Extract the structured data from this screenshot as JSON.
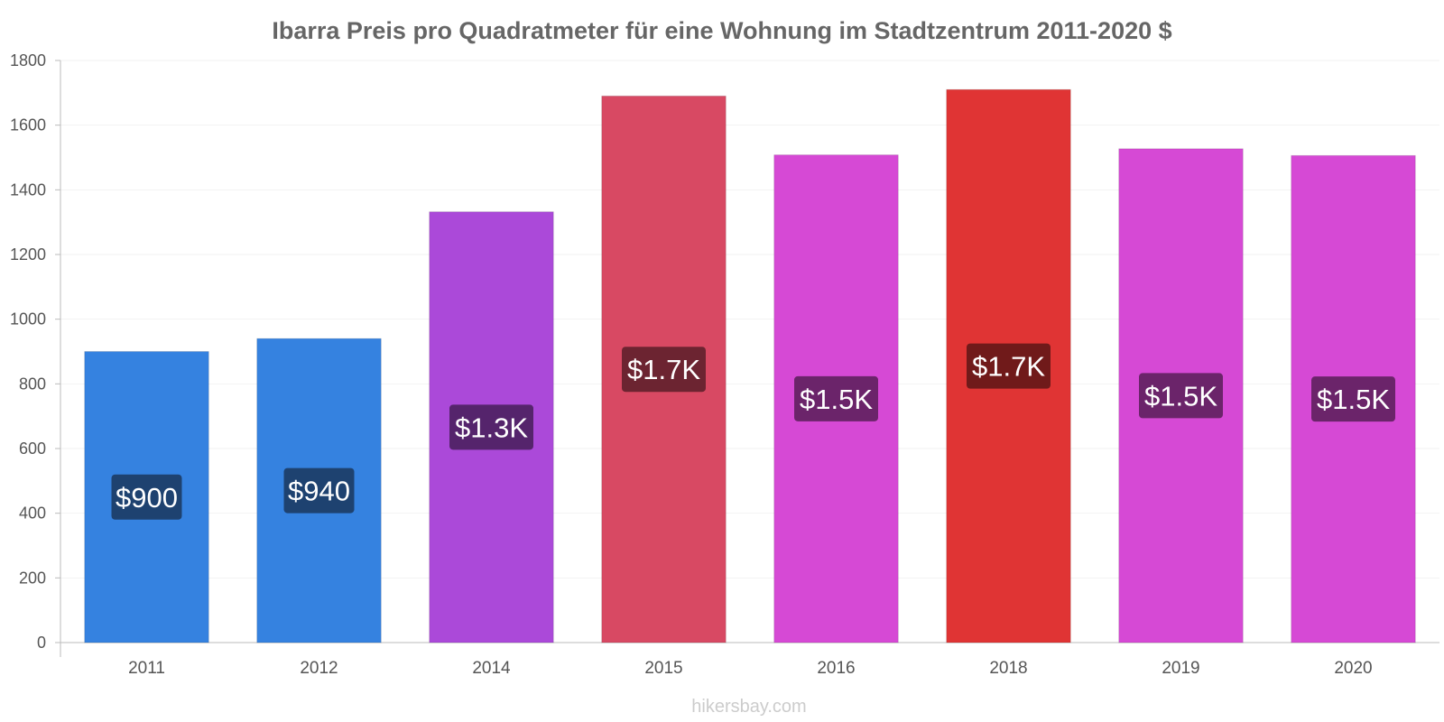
{
  "chart_data": {
    "type": "bar",
    "title": "Ibarra Preis pro Quadratmeter für eine Wohnung im Stadtzentrum 2011-2020 $",
    "xlabel": "",
    "ylabel": "",
    "ylim": [
      0,
      1800
    ],
    "yticks": [
      "0",
      "200",
      "400",
      "600",
      "800",
      "1000",
      "1200",
      "1400",
      "1600",
      "1800"
    ],
    "categories": [
      "2011",
      "2012",
      "2014",
      "2015",
      "2016",
      "2018",
      "2019",
      "2020"
    ],
    "values": [
      900,
      940,
      1332,
      1690,
      1508,
      1710,
      1527,
      1506
    ],
    "value_labels": [
      "$900",
      "$940",
      "$1.3K",
      "$1.7K",
      "$1.5K",
      "$1.7K",
      "$1.5K",
      "$1.5K"
    ],
    "bar_colors": [
      "#3582e0",
      "#3582e0",
      "#ab49d9",
      "#d84963",
      "#d649d5",
      "#e03434",
      "#d649d5",
      "#d649d5"
    ],
    "label_bg_colors": [
      "#1e4270",
      "#1e4270",
      "#55246c",
      "#6c2431",
      "#6b246a",
      "#701a1a",
      "#6b246a",
      "#6b246a"
    ],
    "grid": true
  },
  "watermark": "hikersbay.com"
}
